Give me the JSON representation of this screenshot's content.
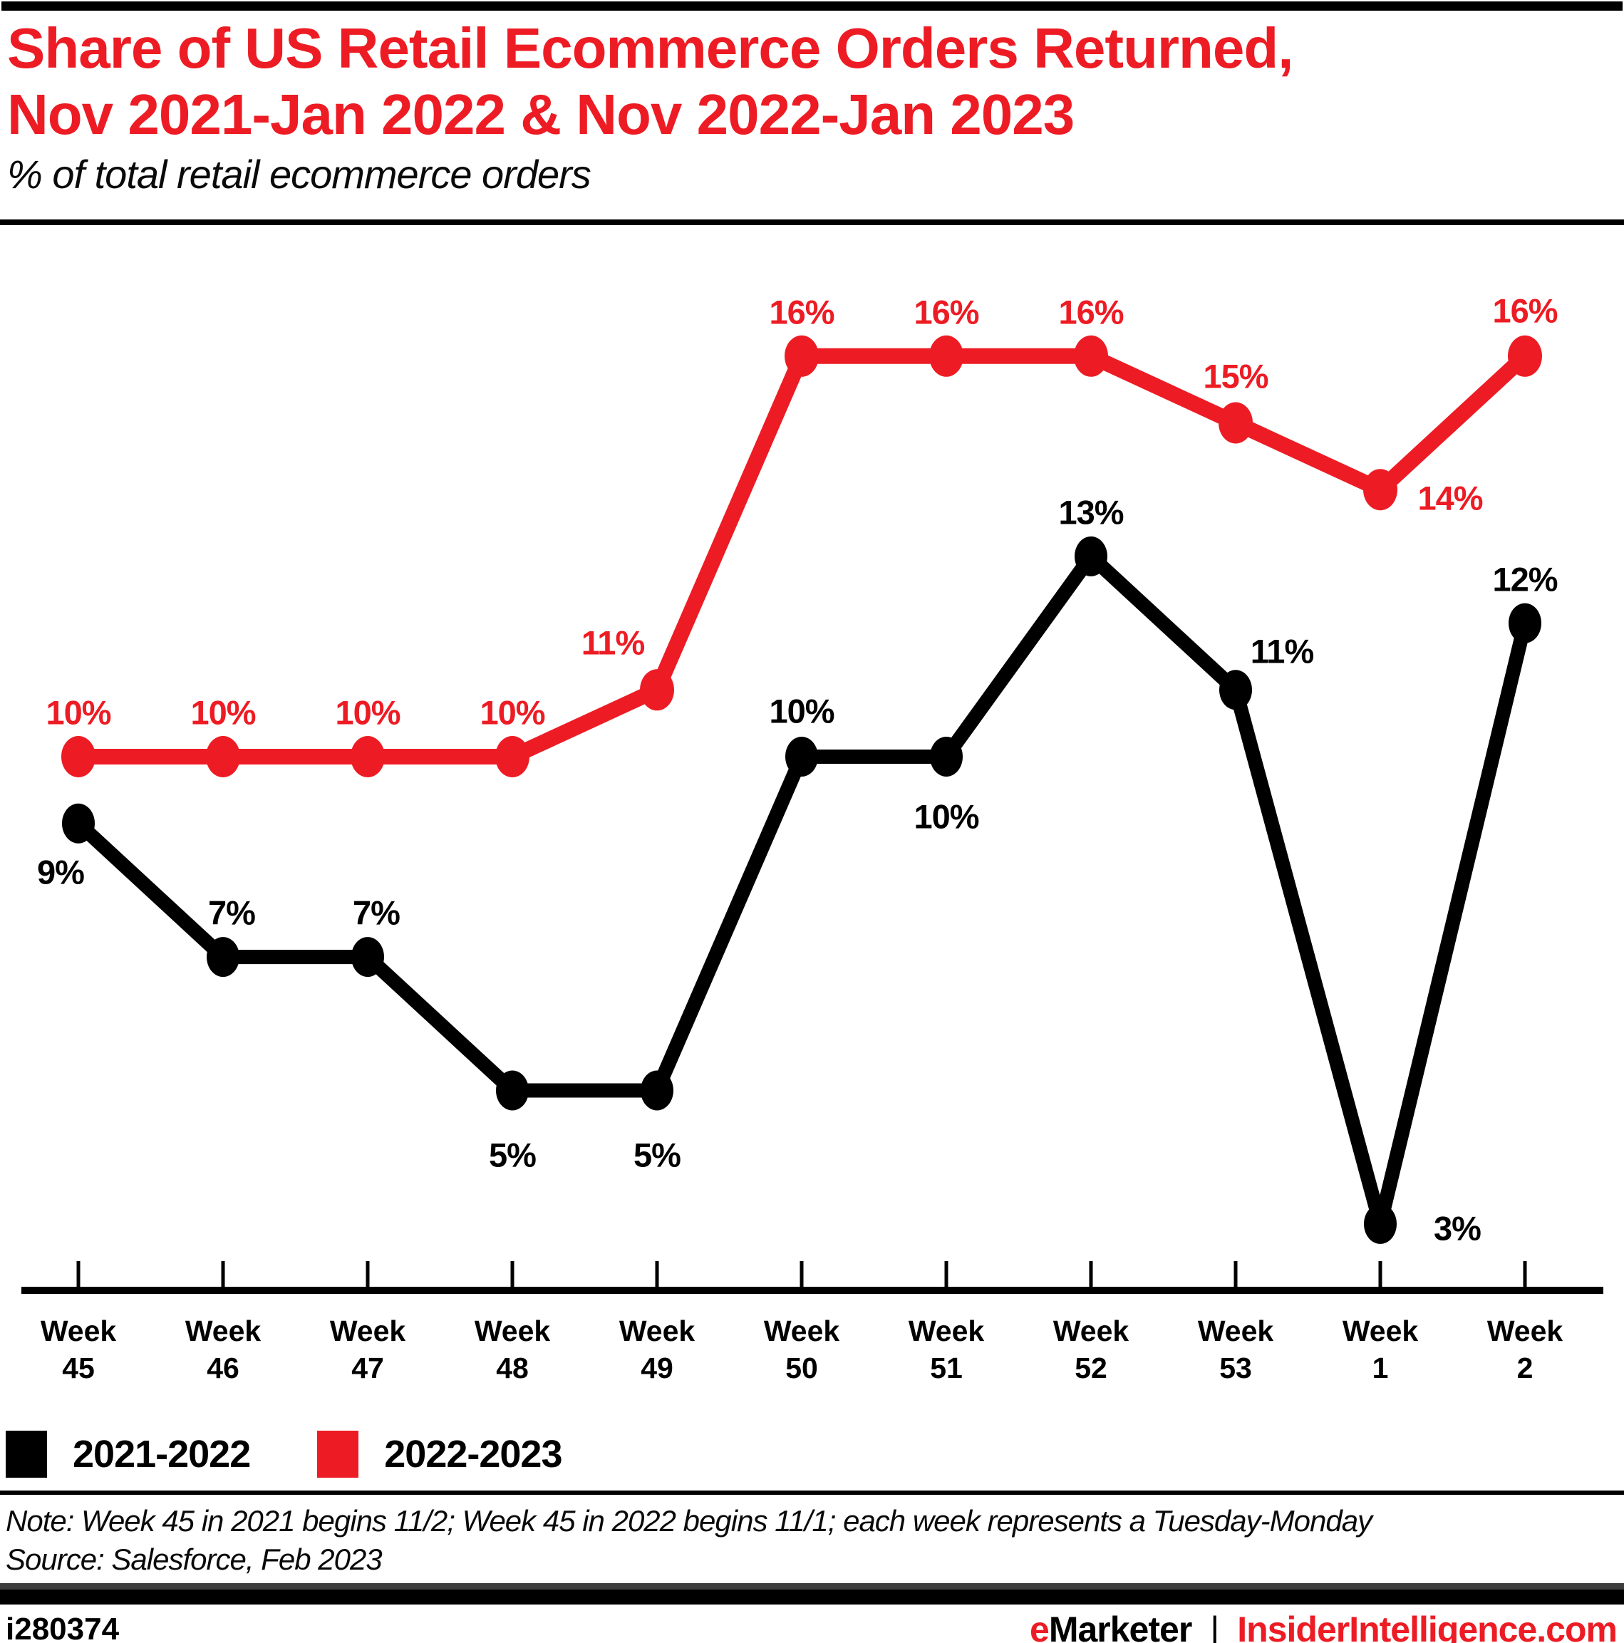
{
  "page": {
    "title_line1": "Share of US Retail Ecommerce Orders Returned,",
    "title_line2": "Nov 2021-Jan 2022 & Nov 2022-Jan 2023",
    "subtitle": "% of total retail ecommerce orders",
    "note_line1": "Note: Week 45 in 2021 begins 11/2; Week 45 in 2022 begins 11/1; each week represents a Tuesday-Monday",
    "note_line2": "Source: Salesforce, Feb 2023",
    "chart_id": "i280374",
    "brand": {
      "emarketer_e": "e",
      "emarketer_rest": "Marketer",
      "separator": "|",
      "site": "InsiderIntelligence.com"
    }
  },
  "colors": {
    "accent_red": "#ed1c24",
    "black": "#000000"
  },
  "chart_data": {
    "type": "line",
    "title": "Share of US Retail Ecommerce Orders Returned, Nov 2021-Jan 2022 & Nov 2022-Jan 2023",
    "subtitle": "% of total retail ecommerce orders",
    "categories": [
      "Week 45",
      "Week 46",
      "Week 47",
      "Week 48",
      "Week 49",
      "Week 50",
      "Week 51",
      "Week 52",
      "Week 53",
      "Week 1",
      "Week 2"
    ],
    "series": [
      {
        "name": "2021-2022",
        "color": "#000000",
        "values": [
          9,
          7,
          7,
          5,
          5,
          10,
          10,
          13,
          11,
          3,
          12
        ],
        "unit": "%"
      },
      {
        "name": "2022-2023",
        "color": "#ed1c24",
        "values": [
          10,
          10,
          10,
          10,
          11,
          16,
          16,
          16,
          15,
          14,
          16
        ],
        "unit": "%"
      }
    ],
    "ylim": [
      0,
      18
    ],
    "grid": false,
    "y_axis_visible": false,
    "data_labels": true,
    "legend_position": "bottom-left"
  }
}
